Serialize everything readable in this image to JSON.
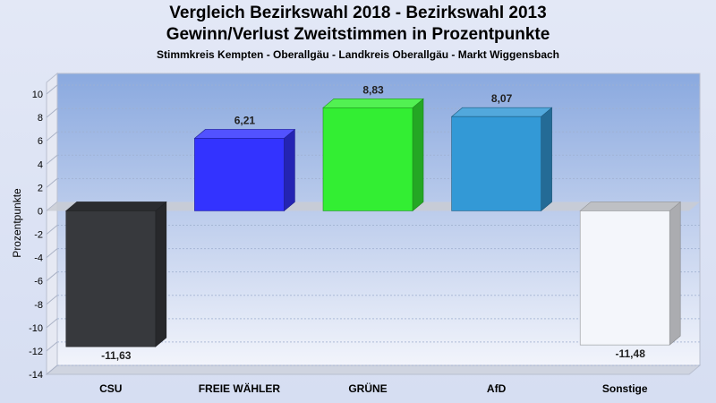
{
  "chart_data": {
    "type": "bar",
    "title": "Vergleich Bezirkswahl 2018 - Bezirkswahl 2013",
    "subtitle": "Gewinn/Verlust Zweitstimmen in Prozentpunkte",
    "subsubtitle": "Stimmkreis Kempten - Oberallgäu - Landkreis Oberallgäu - Markt Wiggensbach",
    "ylabel": "Prozentpunkte",
    "xlabel": "",
    "ylim": [
      -14,
      11
    ],
    "yticks": [
      10,
      8,
      6,
      4,
      2,
      0,
      -2,
      -4,
      -6,
      -8,
      -10,
      -12,
      -14
    ],
    "categories": [
      "CSU",
      "FREIE WÄHLER",
      "GRÜNE",
      "AfD",
      "Sonstige"
    ],
    "values": [
      -11.63,
      6.21,
      8.83,
      8.07,
      -11.48
    ],
    "value_labels": [
      "-11,63",
      "6,21",
      "8,83",
      "8,07",
      "-11,48"
    ],
    "colors": [
      "#37393d",
      "#3333ff",
      "#33ee33",
      "#3399d6",
      "#f4f6fb"
    ],
    "grid": true
  }
}
